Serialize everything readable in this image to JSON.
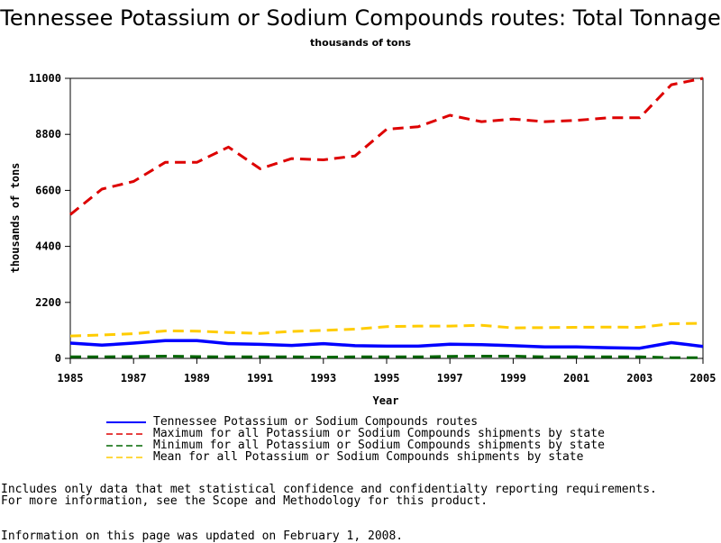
{
  "title": "Tennessee Potassium or Sodium Compounds routes: Total Tonnage",
  "subtitle": "thousands of tons",
  "notes": [
    "Includes only data that met statistical confidence and confidentialty reporting requirements.",
    "For more information, see the Scope and Methodology for this product."
  ],
  "updated": "Information on this page was updated on February 1, 2008.",
  "chart_data": {
    "type": "line",
    "xlabel": "Year",
    "ylabel": "thousands of tons",
    "xlim": [
      1985,
      2005
    ],
    "ylim": [
      0,
      11000
    ],
    "xticks": [
      "1985",
      "1987",
      "1989",
      "1991",
      "1993",
      "1995",
      "1997",
      "1999",
      "2001",
      "2003",
      "2005"
    ],
    "yticks": [
      "0",
      "2200",
      "4400",
      "6600",
      "8800",
      "11000"
    ],
    "grid": false,
    "legend_position": "bottom",
    "x": [
      1985,
      1986,
      1987,
      1988,
      1989,
      1990,
      1991,
      1992,
      1993,
      1994,
      1995,
      1996,
      1997,
      1998,
      1999,
      2000,
      2001,
      2002,
      2003,
      2004,
      2005
    ],
    "series": [
      {
        "name": "Tennessee Potassium or Sodium Compounds routes",
        "color": "#0000ff",
        "dash": "solid",
        "values": [
          600,
          520,
          600,
          700,
          700,
          580,
          550,
          510,
          580,
          500,
          480,
          480,
          560,
          540,
          500,
          450,
          450,
          420,
          400,
          620,
          470
        ]
      },
      {
        "name": "Maximum for all Potassium or Sodium Compounds shipments by state",
        "color": "#dd0000",
        "dash": "dashed",
        "values": [
          5650,
          6650,
          6950,
          7700,
          7700,
          8300,
          7450,
          7850,
          7800,
          7950,
          9000,
          9100,
          9550,
          9300,
          9400,
          9300,
          9350,
          9450,
          9450,
          10750,
          11000
        ]
      },
      {
        "name": "Minimum for all Potassium or Sodium Compounds shipments by state",
        "color": "#006600",
        "dash": "dashed",
        "values": [
          60,
          60,
          70,
          90,
          70,
          60,
          60,
          60,
          50,
          60,
          60,
          60,
          80,
          90,
          90,
          60,
          60,
          60,
          60,
          30,
          30
        ]
      },
      {
        "name": "Mean for all Potassium or Sodium Compounds shipments by state",
        "color": "#ffcc00",
        "dash": "dashed",
        "values": [
          880,
          920,
          970,
          1080,
          1070,
          1020,
          980,
          1060,
          1100,
          1150,
          1250,
          1270,
          1270,
          1300,
          1200,
          1210,
          1220,
          1230,
          1220,
          1360,
          1380
        ]
      }
    ]
  }
}
